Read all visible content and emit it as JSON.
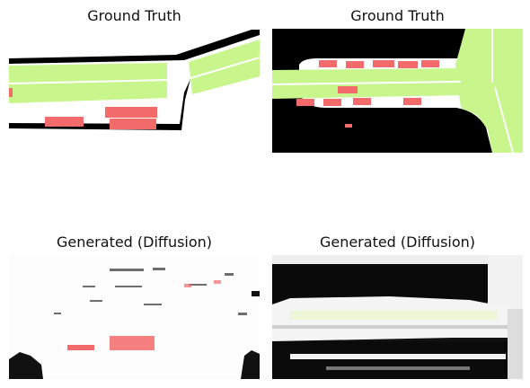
{
  "figure": {
    "panels": [
      {
        "title": "Ground Truth"
      },
      {
        "title": "Ground Truth"
      },
      {
        "title": "Generated (Diffusion)"
      },
      {
        "title": "Generated (Diffusion)"
      }
    ],
    "colors": {
      "lane": "#c8f58c",
      "car": "#f26a6a",
      "road": "#ffffff",
      "offroad": "#000000"
    }
  }
}
